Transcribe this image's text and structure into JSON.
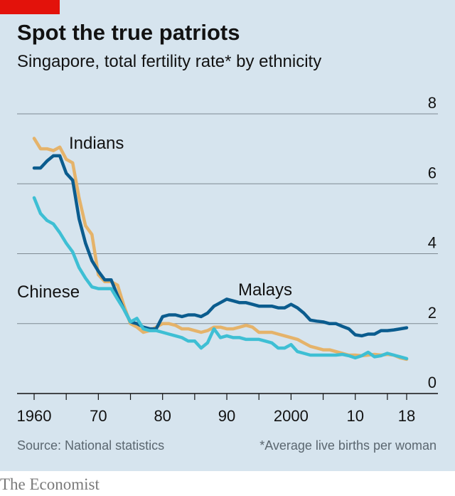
{
  "header": {
    "title": "Spot the true patriots",
    "subtitle": "Singapore, total fertility rate* by ethnicity"
  },
  "footer": {
    "source": "Source: National statistics",
    "footnote": "*Average live births per woman",
    "brand": "The Economist"
  },
  "colors": {
    "background": "#d6e4ee",
    "accent": "#e3120b",
    "chinese": "#3ebfd4",
    "indians": "#e5b36a",
    "malays": "#0b5c8e"
  },
  "chart_data": {
    "type": "line",
    "xlim": [
      1960,
      2018
    ],
    "ylim": [
      0,
      8
    ],
    "x_ticks": [
      1960,
      1965,
      1970,
      1975,
      1980,
      1985,
      1990,
      1995,
      2000,
      2005,
      2010,
      2015,
      2018
    ],
    "x_tick_labels": [
      {
        "x": 1960,
        "label": "1960"
      },
      {
        "x": 1970,
        "label": "70"
      },
      {
        "x": 1980,
        "label": "80"
      },
      {
        "x": 1990,
        "label": "90"
      },
      {
        "x": 2000,
        "label": "2000"
      },
      {
        "x": 2010,
        "label": "10"
      },
      {
        "x": 2018,
        "label": "18"
      }
    ],
    "y_ticks": [
      0,
      2,
      4,
      6,
      8
    ],
    "y_tick_labels": [
      "0",
      "2",
      "4",
      "6",
      "8"
    ],
    "grid": true,
    "series": [
      {
        "name": "Indians",
        "color": "#e5b36a",
        "x": [
          1960,
          1961,
          1962,
          1963,
          1964,
          1965,
          1966,
          1967,
          1968,
          1969,
          1970,
          1971,
          1972,
          1973,
          1974,
          1975,
          1976,
          1977,
          1978,
          1979,
          1980,
          1981,
          1982,
          1983,
          1984,
          1985,
          1986,
          1987,
          1988,
          1989,
          1990,
          1991,
          1992,
          1993,
          1994,
          1995,
          1996,
          1997,
          1998,
          1999,
          2000,
          2001,
          2002,
          2003,
          2004,
          2005,
          2006,
          2007,
          2008,
          2009,
          2010,
          2011,
          2012,
          2013,
          2014,
          2015,
          2016,
          2017,
          2018
        ],
        "values": [
          7.3,
          7.0,
          7.0,
          6.95,
          7.05,
          6.7,
          6.6,
          5.6,
          4.8,
          4.55,
          3.4,
          3.2,
          3.2,
          3.1,
          2.5,
          2.0,
          1.9,
          1.75,
          1.8,
          1.9,
          2.0,
          2.0,
          1.95,
          1.85,
          1.85,
          1.8,
          1.75,
          1.8,
          1.9,
          1.9,
          1.85,
          1.85,
          1.9,
          1.95,
          1.9,
          1.75,
          1.75,
          1.75,
          1.7,
          1.65,
          1.6,
          1.55,
          1.45,
          1.35,
          1.3,
          1.25,
          1.25,
          1.2,
          1.15,
          1.1,
          1.1,
          1.08,
          1.1,
          1.12,
          1.1,
          1.12,
          1.1,
          1.02,
          0.98
        ]
      },
      {
        "name": "Malays",
        "color": "#0b5c8e",
        "x": [
          1960,
          1961,
          1962,
          1963,
          1964,
          1965,
          1966,
          1967,
          1968,
          1969,
          1970,
          1971,
          1972,
          1973,
          1974,
          1975,
          1976,
          1977,
          1978,
          1979,
          1980,
          1981,
          1982,
          1983,
          1984,
          1985,
          1986,
          1987,
          1988,
          1989,
          1990,
          1991,
          1992,
          1993,
          1994,
          1995,
          1996,
          1997,
          1998,
          1999,
          2000,
          2001,
          2002,
          2003,
          2004,
          2005,
          2006,
          2007,
          2008,
          2009,
          2010,
          2011,
          2012,
          2013,
          2014,
          2015,
          2016,
          2017,
          2018
        ],
        "values": [
          6.45,
          6.45,
          6.65,
          6.8,
          6.8,
          6.3,
          6.1,
          5.0,
          4.3,
          3.8,
          3.5,
          3.25,
          3.25,
          2.8,
          2.4,
          2.05,
          2.0,
          1.9,
          1.85,
          1.85,
          2.2,
          2.25,
          2.25,
          2.2,
          2.25,
          2.25,
          2.2,
          2.3,
          2.5,
          2.6,
          2.7,
          2.65,
          2.6,
          2.6,
          2.55,
          2.5,
          2.5,
          2.5,
          2.45,
          2.45,
          2.55,
          2.45,
          2.3,
          2.1,
          2.07,
          2.05,
          2.0,
          2.0,
          1.92,
          1.85,
          1.68,
          1.65,
          1.7,
          1.7,
          1.8,
          1.8,
          1.82,
          1.85,
          1.88
        ]
      },
      {
        "name": "Chinese",
        "color": "#3ebfd4",
        "x": [
          1960,
          1961,
          1962,
          1963,
          1964,
          1965,
          1966,
          1967,
          1968,
          1969,
          1970,
          1971,
          1972,
          1973,
          1974,
          1975,
          1976,
          1977,
          1978,
          1979,
          1980,
          1981,
          1982,
          1983,
          1984,
          1985,
          1986,
          1987,
          1988,
          1989,
          1990,
          1991,
          1992,
          1993,
          1994,
          1995,
          1996,
          1997,
          1998,
          1999,
          2000,
          2001,
          2002,
          2003,
          2004,
          2005,
          2006,
          2007,
          2008,
          2009,
          2010,
          2011,
          2012,
          2013,
          2014,
          2015,
          2016,
          2017,
          2018
        ],
        "values": [
          5.6,
          5.15,
          4.95,
          4.85,
          4.6,
          4.3,
          4.05,
          3.6,
          3.3,
          3.05,
          3.0,
          3.0,
          3.0,
          2.7,
          2.4,
          2.05,
          2.15,
          1.85,
          1.8,
          1.8,
          1.75,
          1.7,
          1.65,
          1.6,
          1.5,
          1.5,
          1.3,
          1.45,
          1.85,
          1.6,
          1.65,
          1.6,
          1.6,
          1.55,
          1.55,
          1.55,
          1.5,
          1.45,
          1.3,
          1.3,
          1.4,
          1.2,
          1.15,
          1.1,
          1.1,
          1.1,
          1.1,
          1.1,
          1.12,
          1.08,
          1.02,
          1.08,
          1.18,
          1.05,
          1.08,
          1.15,
          1.1,
          1.05,
          1.0
        ]
      }
    ]
  }
}
